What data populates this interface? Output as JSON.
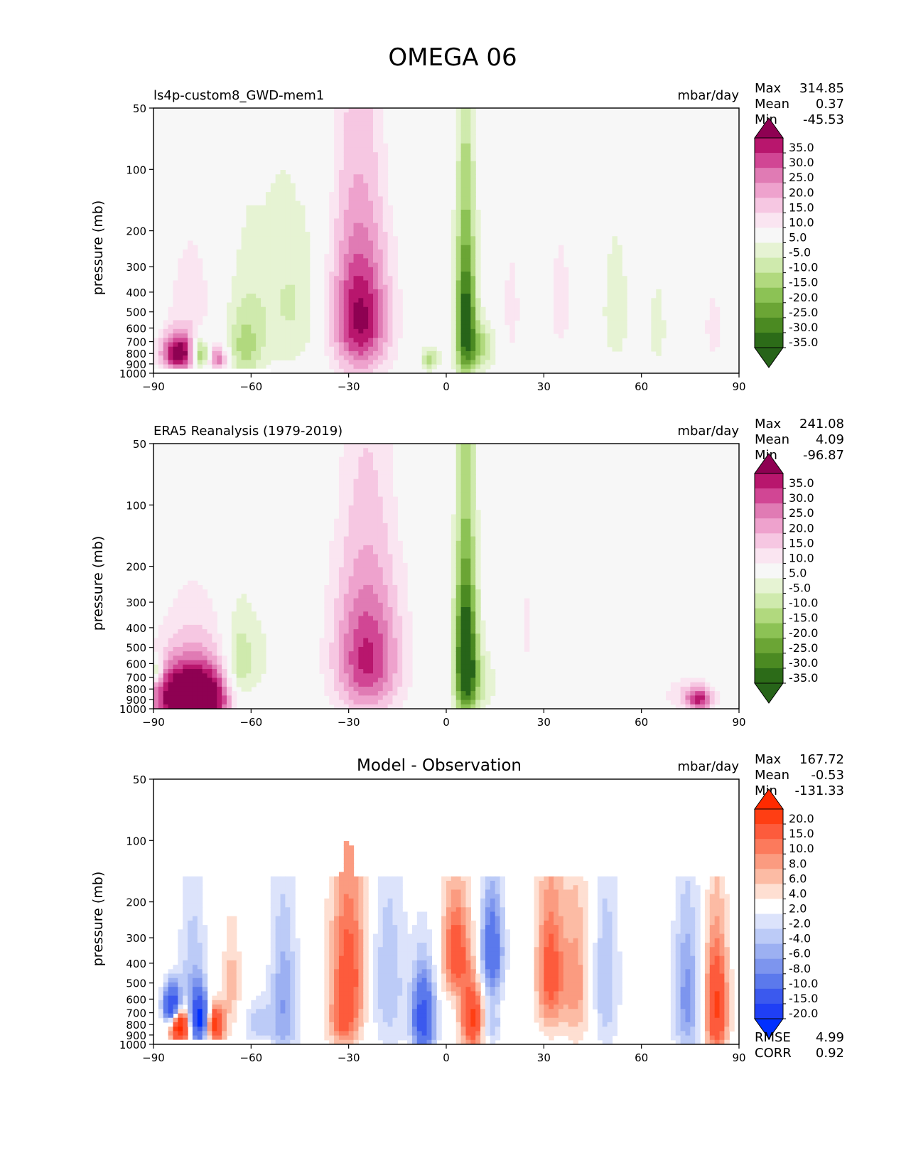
{
  "title": "OMEGA 06",
  "chart_data": [
    {
      "type": "heatmap",
      "id": "model",
      "title": "",
      "left_label": "ls4p-custom8_GWD-mem1",
      "units": "mbar/day",
      "ylabel": "pressure (mb)",
      "xlim": [
        -90,
        90
      ],
      "ylim": [
        1000,
        50
      ],
      "x_ticks": [
        "−90",
        "−60",
        "−30",
        "0",
        "30",
        "60",
        "90"
      ],
      "y_ticks": [
        "50",
        "100",
        "200",
        "300",
        "400",
        "500",
        "600",
        "700",
        "800",
        "900",
        "1000"
      ],
      "stats": {
        "max_label": "Max",
        "max": "314.85",
        "mean_label": "Mean",
        "mean": "0.37",
        "min_label": "Min",
        "min": "-45.53"
      },
      "colorbar": {
        "labels": [
          "35.0",
          "30.0",
          "25.0",
          "20.0",
          "15.0",
          "10.0",
          "5.0",
          "-5.0",
          "-10.0",
          "-15.0",
          "-20.0",
          "-25.0",
          "-30.0",
          "-35.0"
        ],
        "colors": [
          "#8e0152",
          "#b8166d",
          "#d14694",
          "#e07bb4",
          "#eea2cd",
          "#f6c7e2",
          "#fae5f1",
          "#f7f7f7",
          "#e6f3d3",
          "#cfeaad",
          "#b1d97e",
          "#8cc255",
          "#6ba535",
          "#4b8a22",
          "#2c6b18",
          "#276419"
        ]
      },
      "features": [
        {
          "x": -82,
          "p": 800,
          "v": 40,
          "sx": 4,
          "sp": 120
        },
        {
          "x": -76,
          "p": 800,
          "v": -32,
          "sx": 2,
          "sp": 100
        },
        {
          "x": -70,
          "p": 850,
          "v": 25,
          "sx": 2,
          "sp": 80
        },
        {
          "x": -78,
          "p": 450,
          "v": 8,
          "sx": 6,
          "sp": 250
        },
        {
          "x": -62,
          "p": 750,
          "v": -14,
          "sx": 4,
          "sp": 220
        },
        {
          "x": -55,
          "p": 400,
          "v": -7,
          "sx": 10,
          "sp": 350
        },
        {
          "x": -45,
          "p": 500,
          "v": -6,
          "sx": 6,
          "sp": 300
        },
        {
          "x": -26,
          "p": 550,
          "v": 26,
          "sx": 6,
          "sp": 280
        },
        {
          "x": -28,
          "p": 450,
          "v": 12,
          "sx": 7,
          "sp": 380
        },
        {
          "x": -5,
          "p": 850,
          "v": -18,
          "sx": 2,
          "sp": 80
        },
        {
          "x": 6,
          "p": 550,
          "v": -40,
          "sx": 2.2,
          "sp": 350
        },
        {
          "x": 11,
          "p": 750,
          "v": -16,
          "sx": 3,
          "sp": 150
        },
        {
          "x": 20,
          "p": 500,
          "v": 6,
          "sx": 3,
          "sp": 350
        },
        {
          "x": 35,
          "p": 450,
          "v": 6,
          "sx": 4,
          "sp": 350
        },
        {
          "x": 52,
          "p": 500,
          "v": -7,
          "sx": 4,
          "sp": 350
        },
        {
          "x": 65,
          "p": 600,
          "v": -6,
          "sx": 3,
          "sp": 350
        },
        {
          "x": 82,
          "p": 600,
          "v": 6,
          "sx": 3,
          "sp": 300
        }
      ],
      "mask": {
        "x_from": -90,
        "x_to": -54,
        "p_from": 950,
        "p_to": 1000
      }
    },
    {
      "type": "heatmap",
      "id": "obs",
      "title": "",
      "left_label": "ERA5 Reanalysis (1979-2019)",
      "units": "mbar/day",
      "ylabel": "pressure (mb)",
      "xlim": [
        -90,
        90
      ],
      "ylim": [
        1000,
        50
      ],
      "x_ticks": [
        "−90",
        "−60",
        "−30",
        "0",
        "30",
        "60",
        "90"
      ],
      "y_ticks": [
        "50",
        "100",
        "200",
        "300",
        "400",
        "500",
        "600",
        "700",
        "800",
        "900",
        "1000"
      ],
      "stats": {
        "max_label": "Max",
        "max": "241.08",
        "mean_label": "Mean",
        "mean": "4.09",
        "min_label": "Min",
        "min": "-96.87"
      },
      "colorbar": {
        "labels": [
          "35.0",
          "30.0",
          "25.0",
          "20.0",
          "15.0",
          "10.0",
          "5.0",
          "-5.0",
          "-10.0",
          "-15.0",
          "-20.0",
          "-25.0",
          "-30.0",
          "-35.0"
        ],
        "colors": [
          "#8e0152",
          "#b8166d",
          "#d14694",
          "#e07bb4",
          "#eea2cd",
          "#f6c7e2",
          "#fae5f1",
          "#f7f7f7",
          "#e6f3d3",
          "#cfeaad",
          "#b1d97e",
          "#8cc255",
          "#6ba535",
          "#4b8a22",
          "#2c6b18",
          "#276419"
        ]
      },
      "features": [
        {
          "x": -78,
          "p": 880,
          "v": 60,
          "sx": 8,
          "sp": 200
        },
        {
          "x": -78,
          "p": 500,
          "v": 8,
          "sx": 8,
          "sp": 250
        },
        {
          "x": -89,
          "p": 650,
          "v": -25,
          "sx": 1,
          "sp": 60
        },
        {
          "x": -64,
          "p": 650,
          "v": -16,
          "sx": 3,
          "sp": 220
        },
        {
          "x": -58,
          "p": 600,
          "v": -6,
          "sx": 6,
          "sp": 300
        },
        {
          "x": -24,
          "p": 580,
          "v": 22,
          "sx": 7,
          "sp": 300
        },
        {
          "x": -25,
          "p": 500,
          "v": 10,
          "sx": 8,
          "sp": 400
        },
        {
          "x": 6,
          "p": 550,
          "v": -45,
          "sx": 2.4,
          "sp": 350
        },
        {
          "x": 10,
          "p": 750,
          "v": -10,
          "sx": 4,
          "sp": 200
        },
        {
          "x": 25,
          "p": 400,
          "v": 6,
          "sx": 2,
          "sp": 200
        },
        {
          "x": 78,
          "p": 900,
          "v": 30,
          "sx": 3,
          "sp": 90
        },
        {
          "x": 72,
          "p": 850,
          "v": 8,
          "sx": 4,
          "sp": 120
        }
      ],
      "mask": null
    },
    {
      "type": "heatmap",
      "id": "diff",
      "title": "Model - Observation",
      "left_label": "",
      "units": "mbar/day",
      "ylabel": "pressure (mb)",
      "xlim": [
        -90,
        90
      ],
      "ylim": [
        1000,
        50
      ],
      "x_ticks": [
        "−90",
        "−60",
        "−30",
        "0",
        "30",
        "60",
        "90"
      ],
      "y_ticks": [
        "50",
        "100",
        "200",
        "300",
        "400",
        "500",
        "600",
        "700",
        "800",
        "900",
        "1000"
      ],
      "stats": {
        "max_label": "Max",
        "max": "167.72",
        "mean_label": "Mean",
        "mean": "-0.53",
        "min_label": "Min",
        "min": "-131.33"
      },
      "extra_stats": {
        "rmse_label": "RMSE",
        "rmse": "4.99",
        "corr_label": "CORR",
        "corr": "0.92"
      },
      "colorbar": {
        "labels": [
          "20.0",
          "15.0",
          "10.0",
          "8.0",
          "6.0",
          "4.0",
          "2.0",
          "-2.0",
          "-4.0",
          "-6.0",
          "-8.0",
          "-10.0",
          "-15.0",
          "-20.0"
        ],
        "colors": [
          "#ff2a00",
          "#ff3e13",
          "#fd5b3c",
          "#fc7a5c",
          "#fb9b80",
          "#fcbba4",
          "#fedfd2",
          "#ffffff",
          "#dce3fb",
          "#bccbf7",
          "#9cb0f2",
          "#7d95ee",
          "#5b79ec",
          "#3b59ee",
          "#1f3ff5",
          "#0030ff"
        ]
      },
      "features": [
        {
          "x": -82,
          "p": 800,
          "v": 25,
          "sx": 2,
          "sp": 120
        },
        {
          "x": -84,
          "p": 650,
          "v": -25,
          "sx": 2,
          "sp": 100
        },
        {
          "x": -76,
          "p": 750,
          "v": -22,
          "sx": 2,
          "sp": 150
        },
        {
          "x": -71,
          "p": 800,
          "v": 18,
          "sx": 2,
          "sp": 120
        },
        {
          "x": -78,
          "p": 400,
          "v": -5,
          "sx": 3,
          "sp": 250
        },
        {
          "x": -66,
          "p": 500,
          "v": 5,
          "sx": 2,
          "sp": 200
        },
        {
          "x": -58,
          "p": 800,
          "v": -5,
          "sx": 3,
          "sp": 150
        },
        {
          "x": -50,
          "p": 650,
          "v": -8,
          "sx": 3,
          "sp": 400
        },
        {
          "x": -30,
          "p": 450,
          "v": 12,
          "sx": 4,
          "sp": 300
        },
        {
          "x": -32,
          "p": 800,
          "v": 6,
          "sx": 3,
          "sp": 150
        },
        {
          "x": -18,
          "p": 500,
          "v": -6,
          "sx": 4,
          "sp": 350
        },
        {
          "x": -7,
          "p": 750,
          "v": -18,
          "sx": 2.5,
          "sp": 250
        },
        {
          "x": 3,
          "p": 350,
          "v": 12,
          "sx": 3,
          "sp": 150
        },
        {
          "x": 8,
          "p": 750,
          "v": 16,
          "sx": 2.5,
          "sp": 200
        },
        {
          "x": 14,
          "p": 350,
          "v": -14,
          "sx": 2.5,
          "sp": 150
        },
        {
          "x": 14,
          "p": 800,
          "v": -6,
          "sx": 2,
          "sp": 150
        },
        {
          "x": 32,
          "p": 450,
          "v": 12,
          "sx": 3,
          "sp": 250
        },
        {
          "x": 40,
          "p": 500,
          "v": 7,
          "sx": 3,
          "sp": 300
        },
        {
          "x": 49,
          "p": 500,
          "v": -6,
          "sx": 3,
          "sp": 350
        },
        {
          "x": 74,
          "p": 600,
          "v": -9,
          "sx": 3,
          "sp": 350
        },
        {
          "x": 83,
          "p": 650,
          "v": 16,
          "sx": 2.5,
          "sp": 300
        }
      ],
      "mask": {
        "x_from": -90,
        "x_to": -54,
        "p_from": 950,
        "p_to": 1000
      }
    }
  ]
}
